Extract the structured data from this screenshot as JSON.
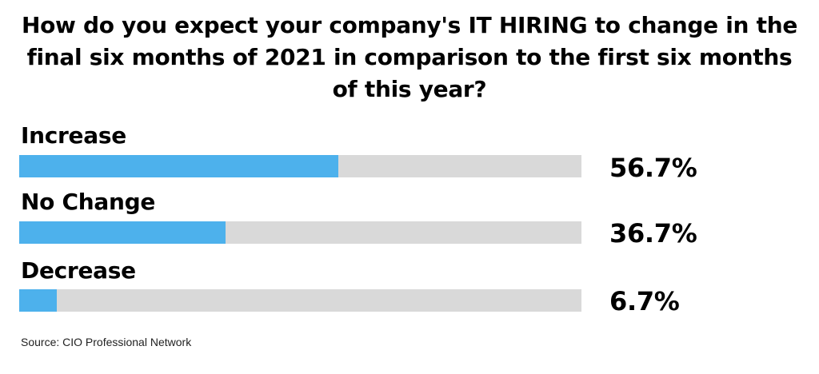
{
  "chart_data": {
    "type": "bar",
    "orientation": "horizontal",
    "title": "How do you expect your company's IT HIRING to change in the final six months of 2021 in comparison to the first six months of this year?",
    "categories": [
      "Increase",
      "No Change",
      "Decrease"
    ],
    "values": [
      56.7,
      36.7,
      6.7
    ],
    "value_labels": [
      "56.7%",
      "36.7%",
      "6.7%"
    ],
    "xlim": [
      0,
      100
    ],
    "unit": "%",
    "grid": false,
    "legend": "none",
    "bar_color": "#4db1ec",
    "track_color": "#d9d9d9",
    "source": "Source: CIO Professional Network"
  }
}
